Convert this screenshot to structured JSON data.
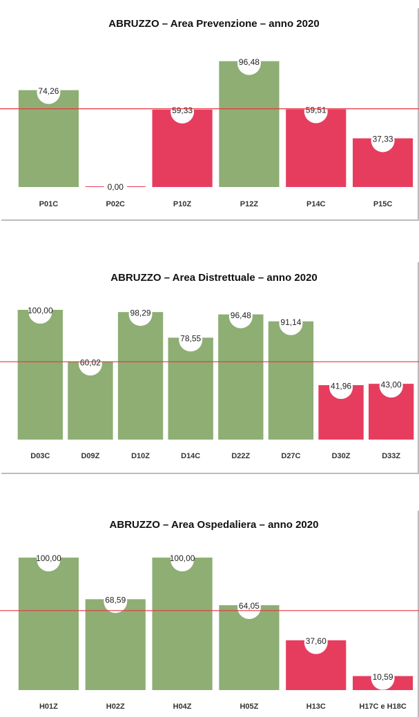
{
  "chart_data": [
    {
      "type": "bar",
      "title": "ABRUZZO  – Area Prevenzione – anno 2020",
      "categories": [
        "P01C",
        "P02C",
        "P10Z",
        "P12Z",
        "P14C",
        "P15C"
      ],
      "values": [
        74.26,
        0,
        59.33,
        96.48,
        59.51,
        37.33
      ],
      "value_labels": [
        "74,26",
        "0,00",
        "59,33",
        "96,48",
        "59,51",
        "37,33"
      ],
      "colors": [
        "#8eae74",
        "#e63d5f",
        "#e63d5f",
        "#8eae74",
        "#e63d5f",
        "#e63d5f"
      ],
      "ylim": [
        0,
        100
      ],
      "threshold": 60,
      "threshold_color": "#e8333f"
    },
    {
      "type": "bar",
      "title": "ABRUZZO  – Area Distrettuale – anno 2020",
      "categories": [
        "D03C",
        "D09Z",
        "D10Z",
        "D14C",
        "D22Z",
        "D27C",
        "D30Z",
        "D33Z"
      ],
      "values": [
        100,
        60.02,
        98.29,
        78.55,
        96.48,
        91.14,
        41.96,
        43
      ],
      "value_labels": [
        "100,00",
        "60,02",
        "98,29",
        "78,55",
        "96,48",
        "91,14",
        "41,96",
        "43,00"
      ],
      "colors": [
        "#8eae74",
        "#8eae74",
        "#8eae74",
        "#8eae74",
        "#8eae74",
        "#8eae74",
        "#e63d5f",
        "#e63d5f"
      ],
      "ylim": [
        0,
        100
      ],
      "threshold": 60,
      "threshold_color": "#e8333f"
    },
    {
      "type": "bar",
      "title": "ABRUZZO  – Area Ospedaliera – anno 2020",
      "categories": [
        "H01Z",
        "H02Z",
        "H04Z",
        "H05Z",
        "H13C",
        "H17C e H18C"
      ],
      "values": [
        100,
        68.59,
        100,
        64.05,
        37.6,
        10.59
      ],
      "value_labels": [
        "100,00",
        "68,59",
        "100,00",
        "64,05",
        "37,60",
        "10,59"
      ],
      "colors": [
        "#8eae74",
        "#8eae74",
        "#8eae74",
        "#8eae74",
        "#e63d5f",
        "#e63d5f"
      ],
      "ylim": [
        0,
        100
      ],
      "threshold": 60,
      "threshold_color": "#e8333f"
    }
  ]
}
